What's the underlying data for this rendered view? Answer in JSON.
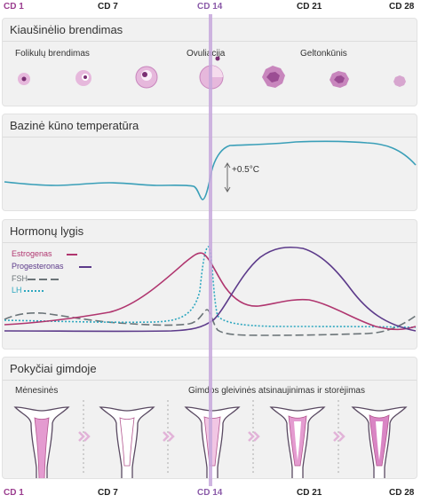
{
  "cycle_days": [
    "CD 1",
    "CD 7",
    "CD 14",
    "CD 21",
    "CD 28"
  ],
  "sections": {
    "ovary": {
      "title": "Kiaušinėlio brendimas",
      "labels": {
        "follicles": "Folikulų brendimas",
        "ovulation": "Ovuliacija",
        "corpus_luteum": "Geltonkūnis"
      }
    },
    "temperature": {
      "title": "Bazinė kūno temperatūra",
      "delta_label": "+0.5°C"
    },
    "hormones": {
      "title": "Hormonų lygis",
      "legend": [
        {
          "name": "Estrogenas",
          "color": "#b0366f",
          "style": "solid"
        },
        {
          "name": "Progesteronas",
          "color": "#5c3a8a",
          "style": "solid"
        },
        {
          "name": "FSH",
          "color": "#6b7478",
          "style": "dashed"
        },
        {
          "name": "LH",
          "color": "#2ea7bf",
          "style": "dotted"
        }
      ]
    },
    "uterus": {
      "title": "Pokyčiai gimdoje",
      "labels": {
        "menstruation": "Mėnesinės",
        "lining": "Gimdos gleivinės atsinaujinimas ir storėjimas"
      }
    }
  },
  "colors": {
    "accent": "#9b3d8f",
    "ovulation_line": "#c7a8dc",
    "temperature": "#3a9fb8",
    "uterus_pink": "#e49bd0"
  }
}
